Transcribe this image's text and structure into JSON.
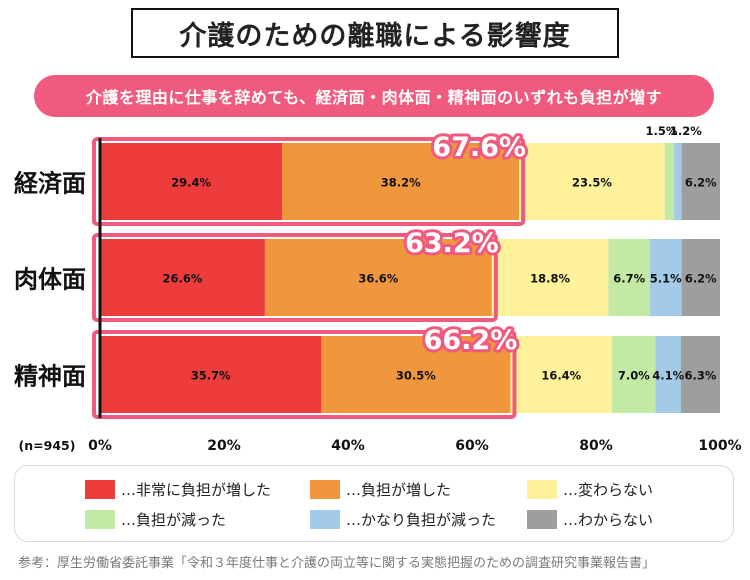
{
  "title": "介護のための離職による影響度",
  "subtitle": "介護を理由に仕事を辞めても、経済面・肉体面・精神面のいずれも負担が増す",
  "source": "参考：厚生労働省委託事業「令和３年度仕事と介護の両立等に関する実態把握のための調査研究事業報告書」",
  "chart_data": {
    "type": "bar",
    "orientation": "horizontal",
    "stacked": true,
    "percent_scale": true,
    "n_label": "(n=945)",
    "categories": [
      "経済面",
      "肉体面",
      "精神面"
    ],
    "series": [
      {
        "name": "非常に負担が増した",
        "color": "#ee3c3c",
        "values": [
          29.4,
          26.6,
          35.7
        ],
        "labels": [
          "29.4%",
          "26.6%",
          "35.7%"
        ]
      },
      {
        "name": "負担が増した",
        "color": "#f0963c",
        "values": [
          38.2,
          36.6,
          30.5
        ],
        "labels": [
          "38.2%",
          "36.6%",
          "30.5%"
        ]
      },
      {
        "name": "変わらない",
        "color": "#fff29a",
        "values": [
          23.5,
          18.8,
          16.4
        ],
        "labels": [
          "23.5%",
          "18.8%",
          "16.4%"
        ]
      },
      {
        "name": "負担が減った",
        "color": "#c2eaa4",
        "values": [
          1.5,
          6.7,
          7.0
        ],
        "labels": [
          "1.5%",
          "6.7%",
          "7.0%"
        ]
      },
      {
        "name": "かなり負担が減った",
        "color": "#a3cbe8",
        "values": [
          1.2,
          5.1,
          4.1
        ],
        "labels": [
          "1.2%",
          "5.1%",
          "4.1%"
        ]
      },
      {
        "name": "わからない",
        "color": "#9e9e9e",
        "values": [
          6.2,
          6.2,
          6.3
        ],
        "labels": [
          "6.2%",
          "6.2%",
          "6.3%"
        ]
      }
    ],
    "highlight_totals": [
      "67.6%",
      "63.2%",
      "66.2%"
    ],
    "highlight_color": "#f05a7e",
    "x_ticks": [
      "0%",
      "20%",
      "40%",
      "60%",
      "80%",
      "100%"
    ],
    "xlim": [
      0,
      100
    ],
    "legend_position": "bottom",
    "legend_prefix": "…"
  }
}
